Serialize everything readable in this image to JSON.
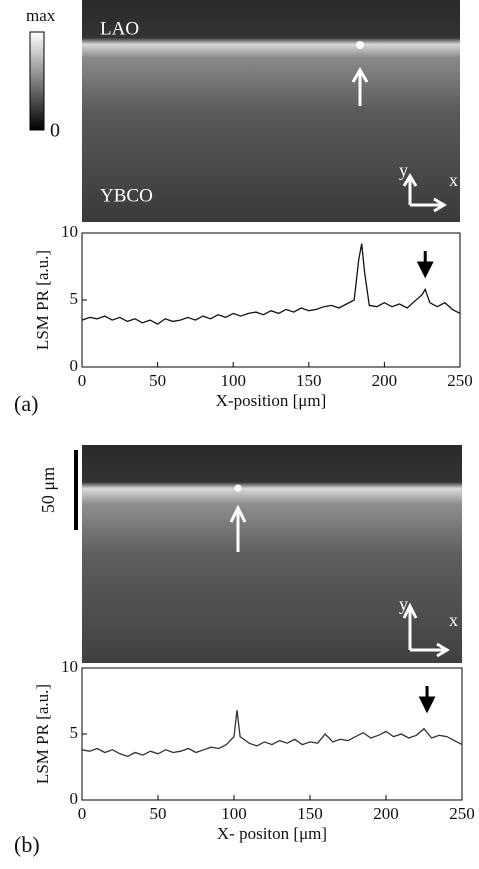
{
  "chart_data": [
    {
      "type": "line",
      "panel_label": "(a)",
      "xlabel": "X-position [μm]",
      "ylabel": "LSM PR [a.u.]",
      "image_labels": [
        "LAO",
        "YBCO"
      ],
      "colorbar_labels": [
        "max",
        "0"
      ],
      "axes_glyph": [
        "y",
        "x"
      ],
      "x": [
        0,
        5,
        10,
        15,
        20,
        25,
        30,
        35,
        40,
        45,
        50,
        55,
        60,
        65,
        70,
        75,
        80,
        85,
        90,
        95,
        100,
        105,
        110,
        115,
        120,
        125,
        130,
        135,
        140,
        145,
        150,
        155,
        160,
        165,
        170,
        175,
        180,
        183,
        185,
        187,
        190,
        195,
        200,
        205,
        210,
        215,
        220,
        225,
        227,
        230,
        235,
        240,
        245,
        250
      ],
      "values": [
        3.5,
        3.7,
        3.6,
        3.8,
        3.5,
        3.7,
        3.4,
        3.6,
        3.3,
        3.5,
        3.2,
        3.6,
        3.4,
        3.5,
        3.7,
        3.5,
        3.8,
        3.6,
        3.9,
        3.7,
        4.0,
        3.8,
        4.0,
        4.1,
        3.9,
        4.2,
        4.0,
        4.3,
        4.1,
        4.4,
        4.2,
        4.3,
        4.5,
        4.6,
        4.4,
        4.7,
        5.0,
        8.0,
        9.2,
        7.0,
        4.6,
        4.5,
        4.8,
        4.5,
        4.7,
        4.4,
        4.9,
        5.4,
        5.8,
        4.8,
        4.5,
        4.8,
        4.3,
        4.0
      ],
      "color": "#111111",
      "xlim": [
        0,
        250
      ],
      "ylim": [
        0,
        10
      ],
      "xticks": [
        0,
        50,
        100,
        150,
        200,
        250
      ],
      "yticks": [
        0,
        5,
        10
      ]
    },
    {
      "type": "line",
      "panel_label": "(b)",
      "xlabel": "X- positon [μm]",
      "ylabel": "LSM PR [a.u.]",
      "scale_bar": "50 μm",
      "axes_glyph": [
        "y",
        "x"
      ],
      "x": [
        0,
        5,
        10,
        15,
        20,
        25,
        30,
        35,
        40,
        45,
        50,
        55,
        60,
        65,
        70,
        75,
        80,
        85,
        90,
        95,
        100,
        102,
        104,
        110,
        115,
        120,
        125,
        130,
        135,
        140,
        145,
        150,
        155,
        160,
        165,
        170,
        175,
        180,
        185,
        190,
        195,
        200,
        205,
        210,
        215,
        220,
        225,
        230,
        235,
        240,
        245,
        250
      ],
      "values": [
        3.8,
        3.7,
        3.9,
        3.6,
        3.8,
        3.5,
        3.3,
        3.6,
        3.4,
        3.7,
        3.5,
        3.8,
        3.6,
        3.7,
        3.9,
        3.6,
        3.8,
        4.0,
        3.9,
        4.2,
        4.8,
        6.8,
        4.8,
        4.3,
        4.1,
        4.4,
        4.2,
        4.5,
        4.3,
        4.6,
        4.2,
        4.4,
        4.3,
        5.0,
        4.4,
        4.6,
        4.5,
        4.8,
        5.1,
        4.7,
        4.9,
        5.2,
        4.8,
        5.0,
        4.7,
        4.9,
        5.4,
        4.7,
        4.9,
        4.8,
        4.5,
        4.2
      ],
      "color": "#333333",
      "xlim": [
        0,
        250
      ],
      "ylim": [
        0,
        10
      ],
      "xticks": [
        0,
        50,
        100,
        150,
        200,
        250
      ],
      "yticks": [
        0,
        5,
        10
      ]
    }
  ]
}
